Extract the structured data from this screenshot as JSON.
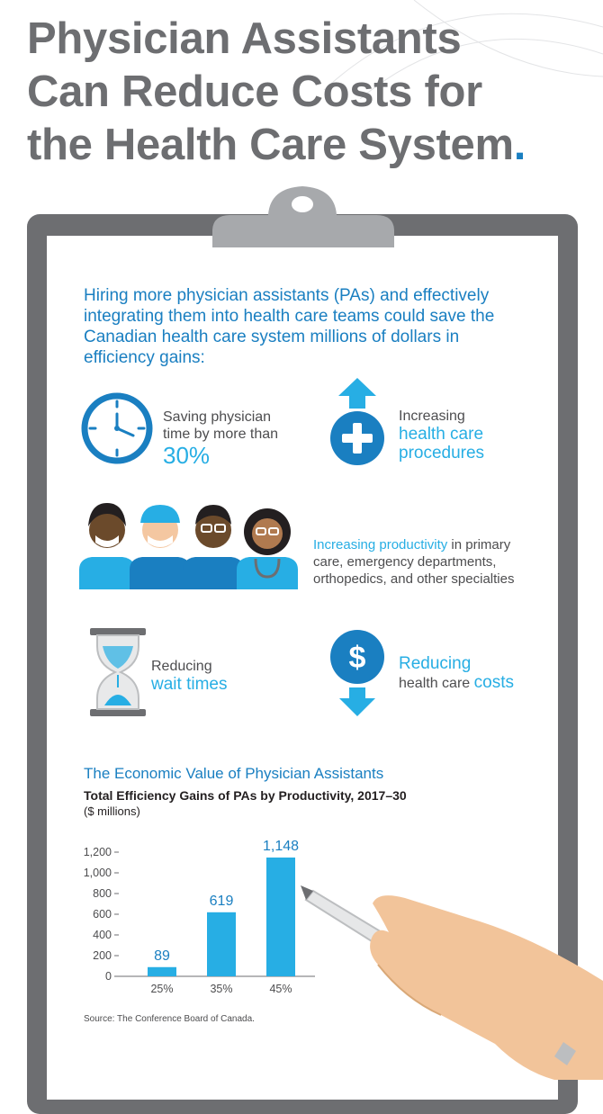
{
  "headline": {
    "line1": "Physician Assistants",
    "line2": "Can Reduce Costs for",
    "line3": "the Health Care System",
    "dot": "."
  },
  "intro": "Hiring more physician assistants (PAs) and effectively integrating them into health care teams could save the Canadian health care system millions of dollars in efficiency gains:",
  "features": {
    "time": {
      "pre": "Saving physician time by more than",
      "big": "30%",
      "icon": "clock-icon"
    },
    "procedures": {
      "pre": "Increasing",
      "big": "health care procedures",
      "icon": "plus-arrow-up-icon"
    },
    "productivity": {
      "highlight": "Increasing productivity",
      "rest": " in primary care, emergency departments, orthopedics, and other specialties",
      "icon": "health-workers-icon"
    },
    "wait": {
      "pre": "Reducing",
      "big": "wait times",
      "icon": "hourglass-icon"
    },
    "costs": {
      "big": "Reducing",
      "pre": "health care",
      "post": "costs",
      "icon": "dollar-arrow-down-icon"
    }
  },
  "chart_heading": "The Economic Value of Physician Assistants",
  "source": "Source: The Conference Board of Canada.",
  "colors": {
    "headline": "#6d6e71",
    "accent": "#1a7fc1",
    "bar": "#27aee4",
    "board": "#6d6e71"
  },
  "chart_data": {
    "type": "bar",
    "title": "Total Efficiency Gains of PAs by Productivity, 2017–30",
    "ylabel": "($ millions)",
    "categories": [
      "25%",
      "35%",
      "45%"
    ],
    "values": [
      89,
      619,
      1148
    ],
    "data_labels": [
      "89",
      "619",
      "1,148"
    ],
    "yticks": [
      0,
      200,
      400,
      600,
      800,
      1000,
      1200
    ],
    "ytick_labels": [
      "0",
      "200",
      "400",
      "600",
      "800",
      "1,000",
      "1,200"
    ],
    "ylim": [
      0,
      1200
    ],
    "grid": false,
    "legend": "none"
  }
}
